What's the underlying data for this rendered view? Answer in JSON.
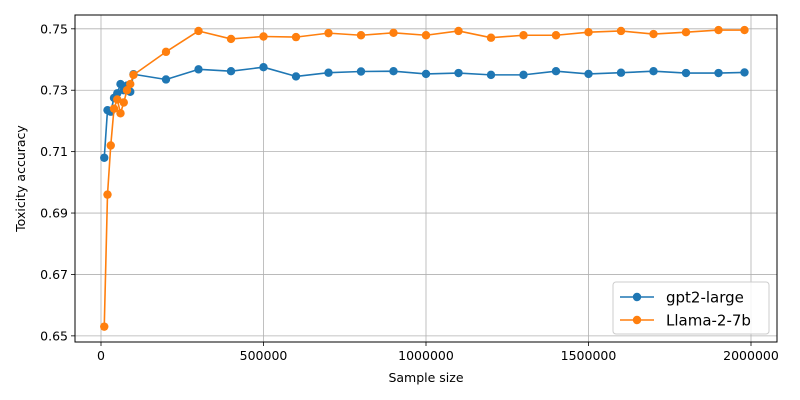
{
  "chart_data": {
    "type": "line",
    "title": "",
    "xlabel": "Sample size",
    "ylabel": "Toxicity accuracy",
    "xlim": [
      -80000,
      2080000
    ],
    "ylim": [
      0.648,
      0.7545
    ],
    "xticks": [
      0,
      500000,
      1000000,
      1500000,
      2000000
    ],
    "yticks": [
      0.65,
      0.67,
      0.69,
      0.71,
      0.73,
      0.75
    ],
    "ytick_labels": [
      "0.65",
      "0.67",
      "0.69",
      "0.71",
      "0.73",
      "0.75"
    ],
    "grid": true,
    "legend_position": "lower right",
    "series": [
      {
        "name": "gpt2-large",
        "color": "#1f77b4",
        "marker": "circle",
        "x": [
          10000,
          20000,
          30000,
          40000,
          50000,
          60000,
          70000,
          80000,
          90000,
          100000,
          200000,
          300000,
          400000,
          500000,
          600000,
          700000,
          800000,
          900000,
          1000000,
          1100000,
          1200000,
          1300000,
          1400000,
          1500000,
          1600000,
          1700000,
          1800000,
          1900000,
          1980000
        ],
        "y": [
          0.708,
          0.7235,
          0.723,
          0.7275,
          0.729,
          0.732,
          0.73,
          0.7315,
          0.7295,
          0.7352,
          0.7335,
          0.7368,
          0.7362,
          0.7375,
          0.7345,
          0.7357,
          0.7361,
          0.7362,
          0.7353,
          0.7356,
          0.735,
          0.735,
          0.7362,
          0.7353,
          0.7357,
          0.7362,
          0.7356,
          0.7356,
          0.7358
        ]
      },
      {
        "name": "Llama-2-7b",
        "color": "#ff7f0e",
        "marker": "circle",
        "x": [
          10000,
          20000,
          30000,
          40000,
          50000,
          60000,
          70000,
          80000,
          90000,
          100000,
          200000,
          300000,
          400000,
          500000,
          600000,
          700000,
          800000,
          900000,
          1000000,
          1100000,
          1200000,
          1300000,
          1400000,
          1500000,
          1600000,
          1700000,
          1800000,
          1900000,
          1980000
        ],
        "y": [
          0.653,
          0.696,
          0.712,
          0.724,
          0.727,
          0.7225,
          0.726,
          0.73,
          0.732,
          0.735,
          0.7425,
          0.7493,
          0.7467,
          0.7475,
          0.7473,
          0.7486,
          0.7479,
          0.7487,
          0.7479,
          0.7493,
          0.7471,
          0.7479,
          0.7479,
          0.7489,
          0.7493,
          0.7483,
          0.7489,
          0.7496,
          0.7496
        ]
      }
    ]
  }
}
